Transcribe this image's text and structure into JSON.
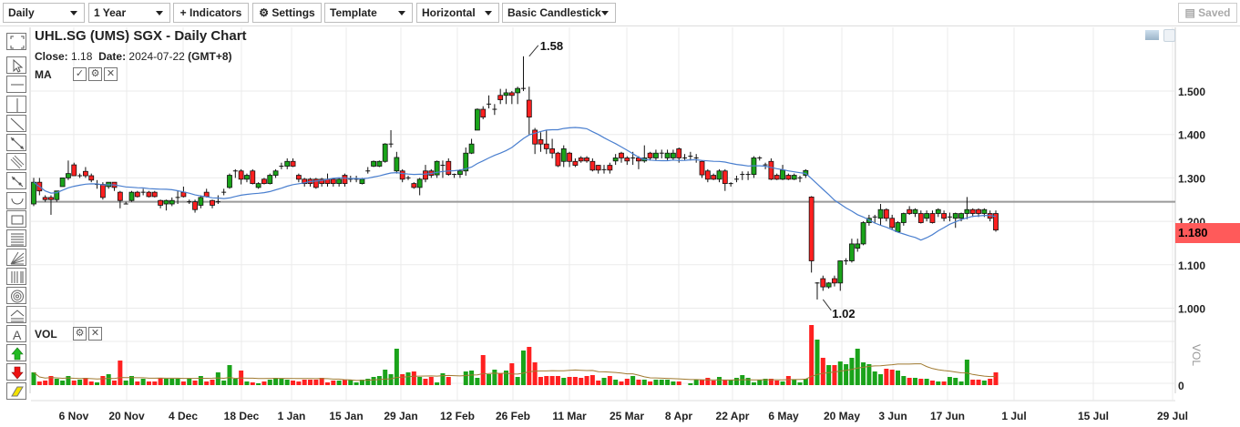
{
  "toolbar": {
    "interval": "Daily",
    "range": "1 Year",
    "indicators": "+ Indicators",
    "settings": "Settings",
    "template": "Template",
    "orientation": "Horizontal",
    "chart_type": "Basic Candlestick",
    "saved": "Saved"
  },
  "left_tools": [
    "fullscreen-icon",
    "pointer-icon",
    "horizontal-line-icon",
    "vertical-line-icon",
    "trend-line-icon",
    "segment-icon",
    "parallel-lines-icon",
    "ray-icon",
    "arc-icon",
    "rectangle-icon",
    "fibonacci-retracement-icon",
    "fan-icon",
    "fibonacci-time-icon",
    "circles-icon",
    "fibonacci-arc-icon",
    "text-icon",
    "arrow-up-icon",
    "arrow-down-icon",
    "eraser-icon"
  ],
  "header": {
    "title": "UHL.SG (UMS) SGX - Daily Chart",
    "close_label": "Close:",
    "close_value": "1.18",
    "date_label": "Date:",
    "date_value": "2024-07-22",
    "timezone": "(GMT+8)",
    "ma_label": "MA",
    "vol_label": "VOL"
  },
  "colors": {
    "up": "#1aa31a",
    "down": "#ff2020",
    "ma": "#4a7fcf",
    "vol_ma": "#a07a30",
    "last_price_bg": "#ff5a5a",
    "reference_line": "#999999"
  },
  "chart_data": {
    "type": "candlestick",
    "price_axis": {
      "ticks": [
        "1.500",
        "1.400",
        "1.300",
        "1.200",
        "1.100",
        "1.000"
      ],
      "tick_values": [
        1.5,
        1.4,
        1.3,
        1.2,
        1.1,
        1.0
      ],
      "range": [
        0.97,
        1.62
      ]
    },
    "last_price": "1.180",
    "reference_line_value": 1.245,
    "annotations": [
      {
        "text": "1.58",
        "value": 1.58
      },
      {
        "text": "1.02",
        "value": 1.02
      }
    ],
    "x_ticks": [
      "6 Nov",
      "20 Nov",
      "4 Dec",
      "18 Dec",
      "1 Jan",
      "15 Jan",
      "29 Jan",
      "12 Feb",
      "26 Feb",
      "11 Mar",
      "25 Mar",
      "8 Apr",
      "22 Apr",
      "6 May",
      "20 May",
      "3 Jun",
      "17 Jun",
      "1 Jul",
      "15 Jul",
      "29 Jul"
    ],
    "ma_period": 20,
    "volume_axis": {
      "ticks": [
        "0"
      ],
      "label": "VOL"
    },
    "candles_ohlc": [
      [
        1.24,
        1.3,
        1.235,
        1.29
      ],
      [
        1.29,
        1.3,
        1.26,
        1.27
      ],
      [
        1.255,
        1.26,
        1.245,
        1.25
      ],
      [
        1.255,
        1.26,
        1.215,
        1.25
      ],
      [
        1.25,
        1.27,
        1.245,
        1.27
      ],
      [
        1.28,
        1.3,
        1.28,
        1.3
      ],
      [
        1.3,
        1.34,
        1.295,
        1.31
      ],
      [
        1.33,
        1.335,
        1.305,
        1.305
      ],
      [
        1.305,
        1.31,
        1.3,
        1.305
      ],
      [
        1.315,
        1.325,
        1.3,
        1.305
      ],
      [
        1.305,
        1.31,
        1.29,
        1.295
      ],
      [
        1.285,
        1.295,
        1.275,
        1.285
      ],
      [
        1.285,
        1.29,
        1.25,
        1.255
      ],
      [
        1.28,
        1.29,
        1.275,
        1.29
      ],
      [
        1.29,
        1.29,
        1.27,
        1.278
      ],
      [
        1.267,
        1.27,
        1.23,
        1.248
      ],
      [
        1.24,
        1.245,
        1.24,
        1.24
      ],
      [
        1.248,
        1.27,
        1.245,
        1.267
      ],
      [
        1.267,
        1.27,
        1.255,
        1.257
      ],
      [
        1.267,
        1.275,
        1.26,
        1.267
      ],
      [
        1.267,
        1.27,
        1.255,
        1.257
      ],
      [
        1.267,
        1.27,
        1.255,
        1.257
      ],
      [
        1.248,
        1.25,
        1.23,
        1.237
      ],
      [
        1.24,
        1.25,
        1.225,
        1.248
      ],
      [
        1.24,
        1.255,
        1.235,
        1.248
      ],
      [
        1.255,
        1.27,
        1.24,
        1.255
      ],
      [
        1.267,
        1.28,
        1.255,
        1.257
      ],
      [
        1.245,
        1.25,
        1.24,
        1.245
      ],
      [
        1.245,
        1.25,
        1.22,
        1.227
      ],
      [
        1.237,
        1.26,
        1.23,
        1.255
      ],
      [
        1.267,
        1.275,
        1.255,
        1.257
      ],
      [
        1.248,
        1.25,
        1.23,
        1.237
      ],
      [
        1.245,
        1.26,
        1.24,
        1.245
      ],
      [
        1.267,
        1.275,
        1.26,
        1.267
      ],
      [
        1.278,
        1.31,
        1.275,
        1.306
      ],
      [
        1.316,
        1.32,
        1.3,
        1.316
      ],
      [
        1.316,
        1.32,
        1.285,
        1.297
      ],
      [
        1.297,
        1.31,
        1.29,
        1.306
      ],
      [
        1.316,
        1.32,
        1.285,
        1.287
      ],
      [
        1.278,
        1.29,
        1.275,
        1.287
      ],
      [
        1.297,
        1.3,
        1.285,
        1.287
      ],
      [
        1.287,
        1.31,
        1.285,
        1.306
      ],
      [
        1.306,
        1.32,
        1.3,
        1.316
      ],
      [
        1.327,
        1.335,
        1.32,
        1.327
      ],
      [
        1.327,
        1.345,
        1.32,
        1.338
      ],
      [
        1.338,
        1.345,
        1.325,
        1.327
      ],
      [
        1.306,
        1.31,
        1.29,
        1.297
      ],
      [
        1.297,
        1.3,
        1.28,
        1.287
      ],
      [
        1.297,
        1.3,
        1.28,
        1.287
      ],
      [
        1.297,
        1.3,
        1.275,
        1.278
      ],
      [
        1.297,
        1.3,
        1.28,
        1.287
      ],
      [
        1.297,
        1.31,
        1.28,
        1.287
      ],
      [
        1.297,
        1.3,
        1.28,
        1.287
      ],
      [
        1.287,
        1.3,
        1.28,
        1.297
      ],
      [
        1.306,
        1.31,
        1.28,
        1.287
      ],
      [
        1.297,
        1.305,
        1.29,
        1.297
      ],
      [
        1.297,
        1.305,
        1.29,
        1.297
      ],
      [
        1.287,
        1.3,
        1.285,
        1.297
      ],
      [
        1.316,
        1.325,
        1.31,
        1.316
      ],
      [
        1.327,
        1.34,
        1.325,
        1.338
      ],
      [
        1.327,
        1.34,
        1.325,
        1.338
      ],
      [
        1.338,
        1.38,
        1.335,
        1.378
      ],
      [
        1.378,
        1.41,
        1.37,
        1.378
      ],
      [
        1.316,
        1.36,
        1.31,
        1.347
      ],
      [
        1.316,
        1.32,
        1.29,
        1.297
      ],
      [
        1.3,
        1.305,
        1.295,
        1.3
      ],
      [
        1.287,
        1.29,
        1.275,
        1.278
      ],
      [
        1.278,
        1.3,
        1.26,
        1.297
      ],
      [
        1.316,
        1.33,
        1.29,
        1.297
      ],
      [
        1.316,
        1.32,
        1.3,
        1.306
      ],
      [
        1.307,
        1.34,
        1.3,
        1.338
      ],
      [
        1.329,
        1.34,
        1.3,
        1.329
      ],
      [
        1.338,
        1.345,
        1.305,
        1.308
      ],
      [
        1.308,
        1.31,
        1.3,
        1.308
      ],
      [
        1.308,
        1.32,
        1.3,
        1.316
      ],
      [
        1.316,
        1.37,
        1.305,
        1.357
      ],
      [
        1.357,
        1.39,
        1.355,
        1.378
      ],
      [
        1.41,
        1.46,
        1.41,
        1.458
      ],
      [
        1.458,
        1.465,
        1.435,
        1.44
      ],
      [
        1.47,
        1.49,
        1.46,
        1.47
      ],
      [
        1.458,
        1.47,
        1.445,
        1.458
      ],
      [
        1.49,
        1.505,
        1.47,
        1.48
      ],
      [
        1.49,
        1.505,
        1.47,
        1.496
      ],
      [
        1.496,
        1.5,
        1.47,
        1.49
      ],
      [
        1.496,
        1.51,
        1.47,
        1.506
      ],
      [
        1.506,
        1.58,
        1.5,
        1.506
      ],
      [
        1.479,
        1.51,
        1.4,
        1.44
      ],
      [
        1.41,
        1.415,
        1.355,
        1.378
      ],
      [
        1.388,
        1.405,
        1.36,
        1.378
      ],
      [
        1.378,
        1.41,
        1.355,
        1.367
      ],
      [
        1.367,
        1.39,
        1.345,
        1.357
      ],
      [
        1.357,
        1.36,
        1.325,
        1.328
      ],
      [
        1.338,
        1.375,
        1.325,
        1.367
      ],
      [
        1.357,
        1.36,
        1.325,
        1.338
      ],
      [
        1.338,
        1.345,
        1.325,
        1.329
      ],
      [
        1.346,
        1.35,
        1.335,
        1.339
      ],
      [
        1.346,
        1.35,
        1.335,
        1.339
      ],
      [
        1.338,
        1.345,
        1.315,
        1.318
      ],
      [
        1.329,
        1.33,
        1.31,
        1.318
      ],
      [
        1.319,
        1.33,
        1.31,
        1.319
      ],
      [
        1.329,
        1.335,
        1.31,
        1.318
      ],
      [
        1.339,
        1.355,
        1.33,
        1.346
      ],
      [
        1.357,
        1.36,
        1.335,
        1.346
      ],
      [
        1.346,
        1.35,
        1.33,
        1.339
      ],
      [
        1.346,
        1.36,
        1.33,
        1.346
      ],
      [
        1.346,
        1.35,
        1.32,
        1.339
      ],
      [
        1.339,
        1.375,
        1.335,
        1.346
      ],
      [
        1.357,
        1.36,
        1.34,
        1.346
      ],
      [
        1.346,
        1.365,
        1.34,
        1.357
      ],
      [
        1.357,
        1.365,
        1.345,
        1.357
      ],
      [
        1.346,
        1.365,
        1.34,
        1.357
      ],
      [
        1.346,
        1.365,
        1.34,
        1.357
      ],
      [
        1.367,
        1.37,
        1.335,
        1.346
      ],
      [
        1.346,
        1.355,
        1.34,
        1.346
      ],
      [
        1.35,
        1.36,
        1.34,
        1.35
      ],
      [
        1.346,
        1.355,
        1.335,
        1.346
      ],
      [
        1.338,
        1.34,
        1.3,
        1.307
      ],
      [
        1.316,
        1.32,
        1.29,
        1.297
      ],
      [
        1.306,
        1.31,
        1.295,
        1.297
      ],
      [
        1.297,
        1.32,
        1.29,
        1.316
      ],
      [
        1.316,
        1.32,
        1.27,
        1.287
      ],
      [
        1.287,
        1.29,
        1.28,
        1.287
      ],
      [
        1.297,
        1.305,
        1.29,
        1.297
      ],
      [
        1.308,
        1.315,
        1.295,
        1.308
      ],
      [
        1.308,
        1.315,
        1.295,
        1.308
      ],
      [
        1.308,
        1.35,
        1.3,
        1.346
      ],
      [
        1.346,
        1.35,
        1.34,
        1.346
      ],
      [
        1.33,
        1.335,
        1.32,
        1.33
      ],
      [
        1.338,
        1.345,
        1.295,
        1.297
      ],
      [
        1.306,
        1.31,
        1.295,
        1.297
      ],
      [
        1.297,
        1.33,
        1.295,
        1.318
      ],
      [
        1.306,
        1.31,
        1.295,
        1.297
      ],
      [
        1.297,
        1.31,
        1.295,
        1.306
      ],
      [
        1.3,
        1.305,
        1.29,
        1.3
      ],
      [
        1.306,
        1.32,
        1.3,
        1.317
      ],
      [
        1.256,
        1.258,
        1.082,
        1.109
      ],
      [
        1.058,
        1.06,
        1.02,
        1.058
      ],
      [
        1.068,
        1.075,
        1.04,
        1.049
      ],
      [
        1.049,
        1.06,
        1.045,
        1.058
      ],
      [
        1.068,
        1.075,
        1.05,
        1.058
      ],
      [
        1.058,
        1.11,
        1.04,
        1.109
      ],
      [
        1.109,
        1.115,
        1.1,
        1.109
      ],
      [
        1.109,
        1.16,
        1.105,
        1.148
      ],
      [
        1.138,
        1.16,
        1.13,
        1.148
      ],
      [
        1.148,
        1.2,
        1.145,
        1.197
      ],
      [
        1.197,
        1.215,
        1.19,
        1.207
      ],
      [
        1.21,
        1.215,
        1.195,
        1.21
      ],
      [
        1.207,
        1.24,
        1.19,
        1.227
      ],
      [
        1.227,
        1.23,
        1.2,
        1.207
      ],
      [
        1.207,
        1.215,
        1.18,
        1.186
      ],
      [
        1.176,
        1.2,
        1.175,
        1.197
      ],
      [
        1.197,
        1.22,
        1.19,
        1.218
      ],
      [
        1.227,
        1.235,
        1.215,
        1.218
      ],
      [
        1.218,
        1.23,
        1.21,
        1.227
      ],
      [
        1.218,
        1.225,
        1.195,
        1.197
      ],
      [
        1.207,
        1.225,
        1.2,
        1.218
      ],
      [
        1.218,
        1.225,
        1.195,
        1.197
      ],
      [
        1.218,
        1.23,
        1.21,
        1.227
      ],
      [
        1.218,
        1.225,
        1.2,
        1.207
      ],
      [
        1.21,
        1.22,
        1.2,
        1.21
      ],
      [
        1.207,
        1.22,
        1.185,
        1.218
      ],
      [
        1.207,
        1.22,
        1.2,
        1.218
      ],
      [
        1.218,
        1.256,
        1.205,
        1.227
      ],
      [
        1.227,
        1.23,
        1.21,
        1.218
      ],
      [
        1.227,
        1.23,
        1.21,
        1.218
      ],
      [
        1.218,
        1.23,
        1.21,
        1.227
      ],
      [
        1.218,
        1.225,
        1.2,
        1.207
      ],
      [
        1.218,
        1.225,
        1.176,
        1.18
      ]
    ],
    "volume_relative": [
      14,
      4,
      5,
      10,
      7,
      5,
      10,
      5,
      6,
      8,
      4,
      3,
      10,
      12,
      5,
      27,
      5,
      10,
      4,
      7,
      4,
      4,
      8,
      7,
      7,
      7,
      4,
      7,
      5,
      10,
      4,
      6,
      14,
      5,
      22,
      7,
      16,
      4,
      3,
      2,
      4,
      6,
      8,
      7,
      6,
      5,
      4,
      6,
      6,
      6,
      8,
      3,
      5,
      5,
      6,
      6,
      3,
      6,
      7,
      9,
      10,
      17,
      12,
      40,
      12,
      14,
      15,
      9,
      7,
      9,
      3,
      13,
      9,
      0,
      0,
      15,
      16,
      8,
      33,
      12,
      17,
      13,
      16,
      24,
      9,
      38,
      42,
      25,
      9,
      10,
      10,
      10,
      8,
      9,
      9,
      8,
      10,
      11,
      5,
      8,
      10,
      6,
      4,
      7,
      10,
      6,
      6,
      4,
      6,
      6,
      6,
      4,
      4,
      0,
      2,
      6,
      6,
      8,
      5,
      9,
      6,
      6,
      8,
      11,
      8,
      3,
      6,
      7,
      7,
      5,
      4,
      10,
      6,
      3,
      7,
      66,
      50,
      30,
      22,
      22,
      26,
      23,
      30,
      40,
      25,
      23,
      15,
      12,
      18,
      17,
      16,
      10,
      8,
      8,
      7,
      7,
      5,
      4,
      4,
      9,
      8,
      4,
      28,
      6,
      6,
      5,
      7,
      14
    ]
  }
}
